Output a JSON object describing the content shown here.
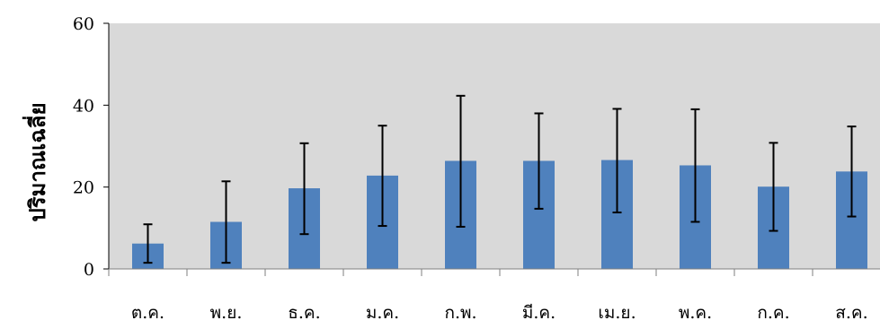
{
  "chart_data": {
    "type": "bar",
    "title": "",
    "xlabel": "",
    "ylabel": "ปริมาณเฉลี่ย",
    "categories": [
      "ต.ค.",
      "พ.ย.",
      "ธ.ค.",
      "ม.ค.",
      "ก.พ.",
      "มี.ค.",
      "เม.ย.",
      "พ.ค.",
      "ก.ค.",
      "ส.ค."
    ],
    "series": [
      {
        "values": [
          6.2,
          11.5,
          19.7,
          22.8,
          26.4,
          26.4,
          26.6,
          25.3,
          20.1,
          23.8
        ],
        "error_low": [
          1.5,
          1.5,
          8.5,
          10.5,
          10.3,
          14.7,
          13.8,
          11.5,
          9.3,
          12.8
        ],
        "error_high": [
          10.9,
          21.4,
          30.7,
          35.0,
          42.3,
          38.0,
          39.1,
          39.0,
          30.8,
          34.8
        ]
      }
    ],
    "ylim": [
      0,
      60
    ],
    "yticks": [
      0,
      20,
      40,
      60
    ],
    "grid": false,
    "legend": "none",
    "colors": {
      "bar": "#4f81bd",
      "plot_background": "#d9d9d9",
      "error_bar": "#000000",
      "axis": "#000000",
      "tick": "#7f7f7f"
    }
  }
}
